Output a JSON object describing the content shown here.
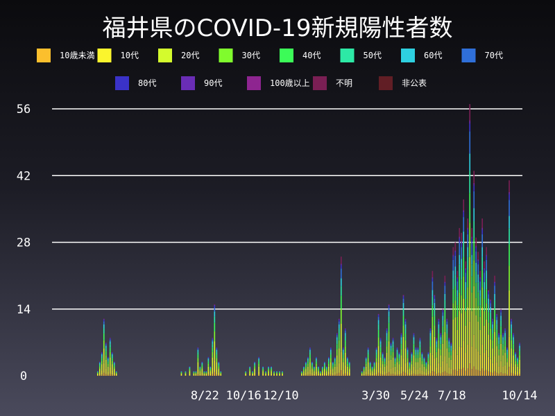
{
  "chart_data": {
    "type": "bar",
    "stacked": true,
    "title": "福井県のCOVID-19新規陽性者数",
    "xlabel": "",
    "ylabel": "",
    "ylim": [
      0,
      56
    ],
    "yticks": [
      0,
      14,
      28,
      42,
      56
    ],
    "x_tick_labels": [
      "8/22",
      "10/16",
      "12/10",
      "3/30",
      "5/24",
      "7/18",
      "10/14"
    ],
    "grid": "horizontal",
    "legend_position": "top",
    "series_colors": [
      "#fbbf2d",
      "#fbf52d",
      "#d4fb2d",
      "#80fb2d",
      "#3cfb58",
      "#2de9a6",
      "#2ed0e0",
      "#2f6fd9",
      "#3a32c8",
      "#6a2db5",
      "#8e2590",
      "#7a1f54",
      "#611e25"
    ],
    "series": [
      {
        "name": "10歳未満"
      },
      {
        "name": "10代"
      },
      {
        "name": "20代"
      },
      {
        "name": "30代"
      },
      {
        "name": "40代"
      },
      {
        "name": "50代"
      },
      {
        "name": "60代"
      },
      {
        "name": "70代"
      },
      {
        "name": "80代"
      },
      {
        "name": "90代"
      },
      {
        "name": "100歳以上"
      },
      {
        "name": "不明"
      },
      {
        "name": "非公表"
      }
    ],
    "x_range": [
      0,
      680
    ],
    "x_tick_positions": [
      221,
      277,
      331,
      468,
      524,
      578,
      676
    ],
    "daily_series": {
      "day_step": 3,
      "days": [
        66,
        69,
        72,
        75,
        78,
        81,
        84,
        87,
        90,
        93,
        96,
        99,
        102,
        105,
        108,
        187,
        193,
        199,
        205,
        208,
        211,
        214,
        217,
        220,
        223,
        226,
        229,
        232,
        235,
        238,
        241,
        244,
        247,
        280,
        286,
        290,
        293,
        299,
        305,
        309,
        313,
        317,
        321,
        325,
        329,
        333,
        337,
        361,
        364,
        367,
        370,
        373,
        376,
        379,
        382,
        385,
        388,
        391,
        394,
        397,
        400,
        403,
        406,
        409,
        412,
        415,
        418,
        421,
        424,
        427,
        430,
        448,
        451,
        454,
        457,
        460,
        463,
        466,
        469,
        472,
        475,
        478,
        481,
        484,
        487,
        490,
        493,
        496,
        499,
        502,
        505,
        508,
        511,
        514,
        517,
        520,
        523,
        526,
        529,
        532,
        535,
        538,
        541,
        544,
        547,
        550,
        553,
        556,
        559,
        562,
        565,
        568,
        571,
        574,
        577,
        580,
        583,
        586,
        589,
        592,
        595,
        598,
        601,
        604,
        607,
        610,
        613,
        616,
        619,
        622,
        625,
        628,
        631,
        634,
        637,
        640,
        643,
        646,
        649,
        652,
        655,
        658,
        661,
        664,
        667,
        670,
        673,
        676
      ],
      "totals": [
        1,
        3,
        5,
        12,
        7,
        4,
        8,
        5,
        3,
        1,
        0,
        0,
        0,
        0,
        0,
        1,
        1,
        2,
        1,
        1,
        6,
        2,
        3,
        1,
        1,
        4,
        2,
        8,
        15,
        6,
        3,
        1,
        0,
        1,
        2,
        1,
        3,
        4,
        2,
        1,
        2,
        2,
        1,
        1,
        1,
        1,
        0,
        1,
        2,
        3,
        4,
        6,
        3,
        2,
        4,
        2,
        1,
        2,
        3,
        2,
        4,
        6,
        3,
        4,
        9,
        12,
        25,
        6,
        10,
        4,
        3,
        1,
        2,
        4,
        6,
        3,
        2,
        3,
        6,
        13,
        8,
        5,
        4,
        10,
        15,
        7,
        8,
        4,
        6,
        5,
        9,
        17,
        12,
        6,
        3,
        5,
        9,
        6,
        6,
        8,
        5,
        4,
        3,
        5,
        10,
        22,
        17,
        8,
        12,
        9,
        14,
        21,
        12,
        8,
        7,
        27,
        28,
        22,
        31,
        30,
        37,
        24,
        33,
        57,
        31,
        43,
        29,
        26,
        22,
        33,
        24,
        27,
        18,
        16,
        12,
        21,
        13,
        9,
        14,
        9,
        10,
        6,
        41,
        12,
        9,
        5,
        4,
        7
      ]
    }
  }
}
